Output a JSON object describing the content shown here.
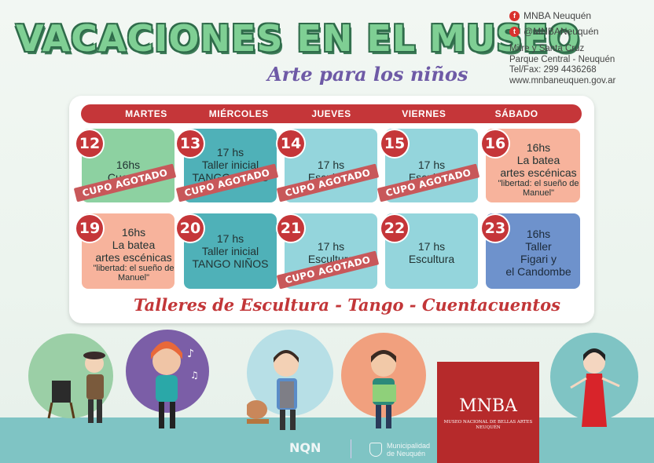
{
  "header": {
    "title": "VACACIONES EN EL MUSEO",
    "subtitle": "Arte para los niños"
  },
  "contact": {
    "facebook": "MNBA Neuquén",
    "twitter": "@MNBANeuquén",
    "address_line1": "Mitre y Santa Cruz",
    "address_line2": "Parque Central - Neuquén",
    "phone": "Tel/Fax: 299 4436268",
    "website": "www.mnbaneuquen.gov.ar"
  },
  "days": [
    "MARTES",
    "MIÉRCOLES",
    "JUEVES",
    "VIERNES",
    "SÁBADO"
  ],
  "week1": [
    {
      "num": "12",
      "l1": "16hs",
      "l2": "Cuentos",
      "l3": "",
      "note": "",
      "stamp": "CUPO AGOTADO"
    },
    {
      "num": "13",
      "l1": "17 hs",
      "l2": "Taller inicial",
      "l3": "TANGO NIÑOS",
      "note": "",
      "stamp": "CUPO AGOTADO"
    },
    {
      "num": "14",
      "l1": "17 hs",
      "l2": "Escultura",
      "l3": "",
      "note": "",
      "stamp": "CUPO AGOTADO"
    },
    {
      "num": "15",
      "l1": "17 hs",
      "l2": "Escultura",
      "l3": "",
      "note": "",
      "stamp": "CUPO AGOTADO"
    },
    {
      "num": "16",
      "l1": "16hs",
      "l2": "La batea",
      "l3": "artes escénicas",
      "note": "\"libertad: el sueño de Manuel\"",
      "stamp": ""
    }
  ],
  "week2": [
    {
      "num": "19",
      "l1": "16hs",
      "l2": "La batea",
      "l3": "artes escénicas",
      "note": "\"libertad: el sueño de Manuel\"",
      "stamp": ""
    },
    {
      "num": "20",
      "l1": "17 hs",
      "l2": "Taller inicial",
      "l3": "TANGO NIÑOS",
      "note": "",
      "stamp": ""
    },
    {
      "num": "21",
      "l1": "17 hs",
      "l2": "Escultura",
      "l3": "",
      "note": "",
      "stamp": "CUPO AGOTADO"
    },
    {
      "num": "22",
      "l1": "17 hs",
      "l2": "Escultura",
      "l3": "",
      "note": "",
      "stamp": ""
    },
    {
      "num": "23",
      "l1": "16hs",
      "l2": "Taller",
      "l3": "Figari y",
      "note": "el Candombe",
      "stamp": ""
    }
  ],
  "footer_tagline": "Talleres de Escultura - Tango - Cuentacuentos",
  "logos": {
    "mnba": "MNBA",
    "mnba_sub": "MUSEO NACIONAL DE BELLAS ARTES NEUQUÉN",
    "nqn": "NQN",
    "municipalidad_1": "Municipalidad",
    "municipalidad_2": "de Neuquén"
  },
  "colors": {
    "red": "#c53639",
    "green_cell": "#8dd1a1",
    "teal_cell": "#4fb1b8",
    "cyan_cell": "#94d5dc",
    "peach_cell": "#f7b39c",
    "blue_cell": "#6e92cc"
  },
  "icons": [
    "facebook-icon",
    "twitter-icon"
  ]
}
